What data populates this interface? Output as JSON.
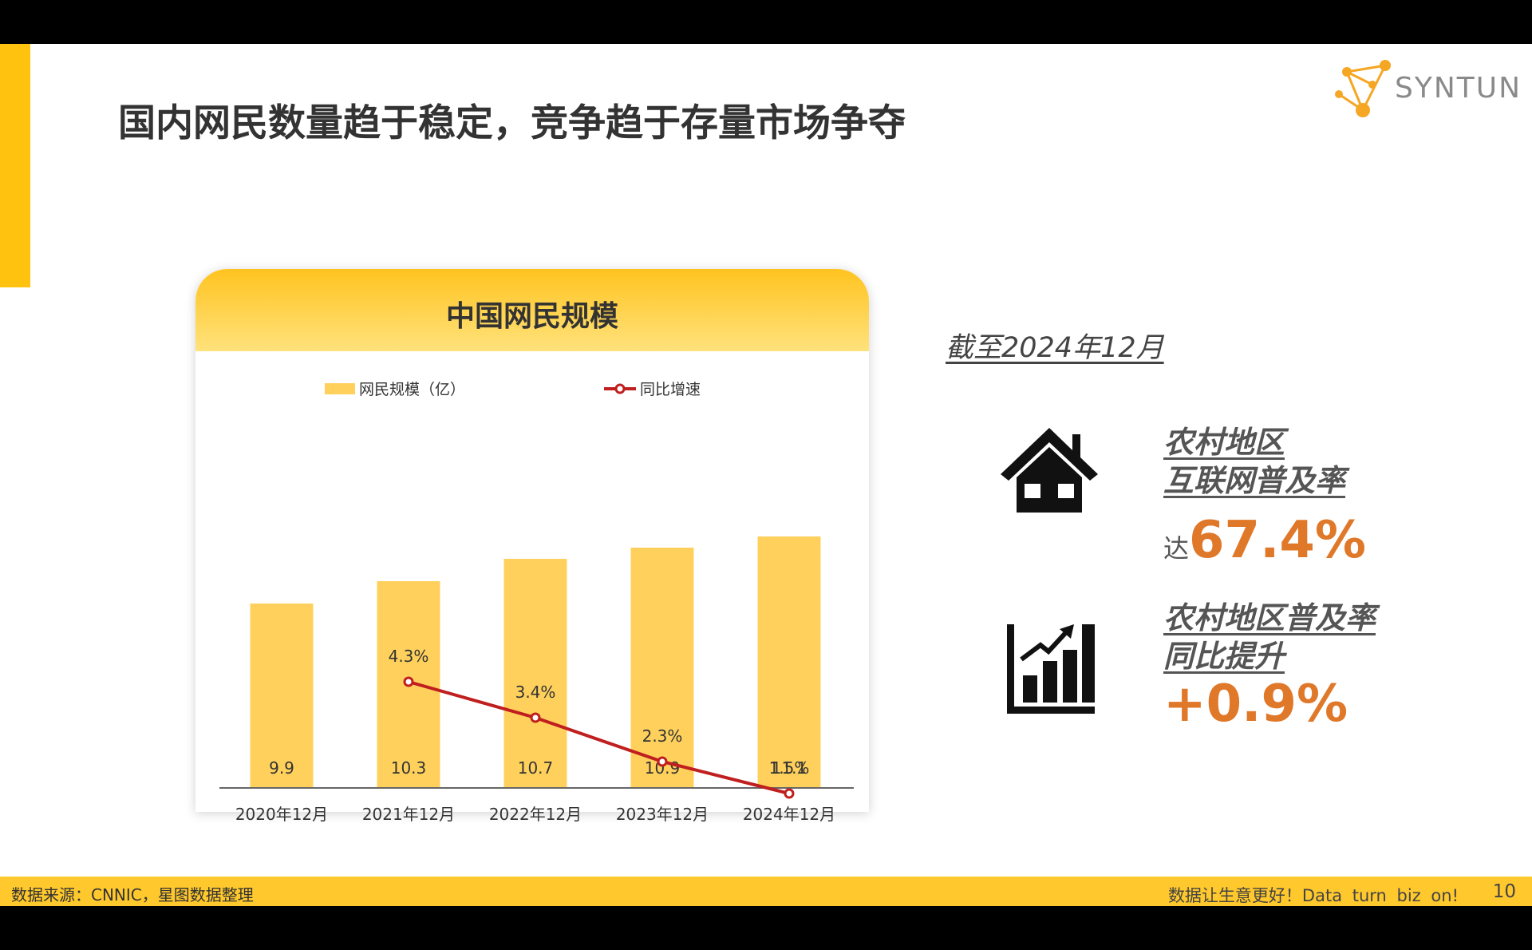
{
  "slide": {
    "title": "国内网民数量趋于稳定，竞争趋于存量市场争夺",
    "logo": {
      "text": "SYNTUN",
      "icon": "network-nodes-icon"
    }
  },
  "chart_card": {
    "title": "中国网民规模"
  },
  "chart_data": {
    "type": "bar",
    "title": "中国网民规模",
    "categories": [
      "2020年12月",
      "2021年12月",
      "2022年12月",
      "2023年12月",
      "2024年12月"
    ],
    "series": [
      {
        "name": "网民规模（亿）",
        "type": "bar",
        "color": "#FFD15C",
        "values": [
          9.9,
          10.3,
          10.7,
          10.9,
          11.1
        ],
        "labels": [
          "9.9",
          "10.3",
          "10.7",
          "10.9",
          "11.1"
        ]
      },
      {
        "name": "同比增速",
        "type": "line",
        "color": "#C01F1F",
        "values": [
          null,
          4.3,
          3.4,
          2.3,
          1.5
        ],
        "labels": [
          "",
          "4.3%",
          "3.4%",
          "2.3%",
          "1.5%"
        ]
      }
    ],
    "legend_position": "top",
    "grid": false
  },
  "right_panel": {
    "as_of": "截至2024年12月",
    "stat1": {
      "label_line1": "农村地区",
      "label_line2": "互联网普及率",
      "prefix": "达",
      "value": "67.4%",
      "icon": "house-icon"
    },
    "stat2": {
      "label_line1": "农村地区普及率",
      "label_line2": "同比提升",
      "value": "+0.9%",
      "icon": "bar-chart-growth-icon"
    }
  },
  "footer": {
    "source": "数据来源：CNNIC，星图数据整理",
    "slogan": "数据让生意更好！Data turn biz on!",
    "page_number": "10"
  },
  "colors": {
    "accent": "#FFC20E",
    "highlight": "#E0782A",
    "bar": "#FFD15C",
    "line": "#C01F1F"
  }
}
